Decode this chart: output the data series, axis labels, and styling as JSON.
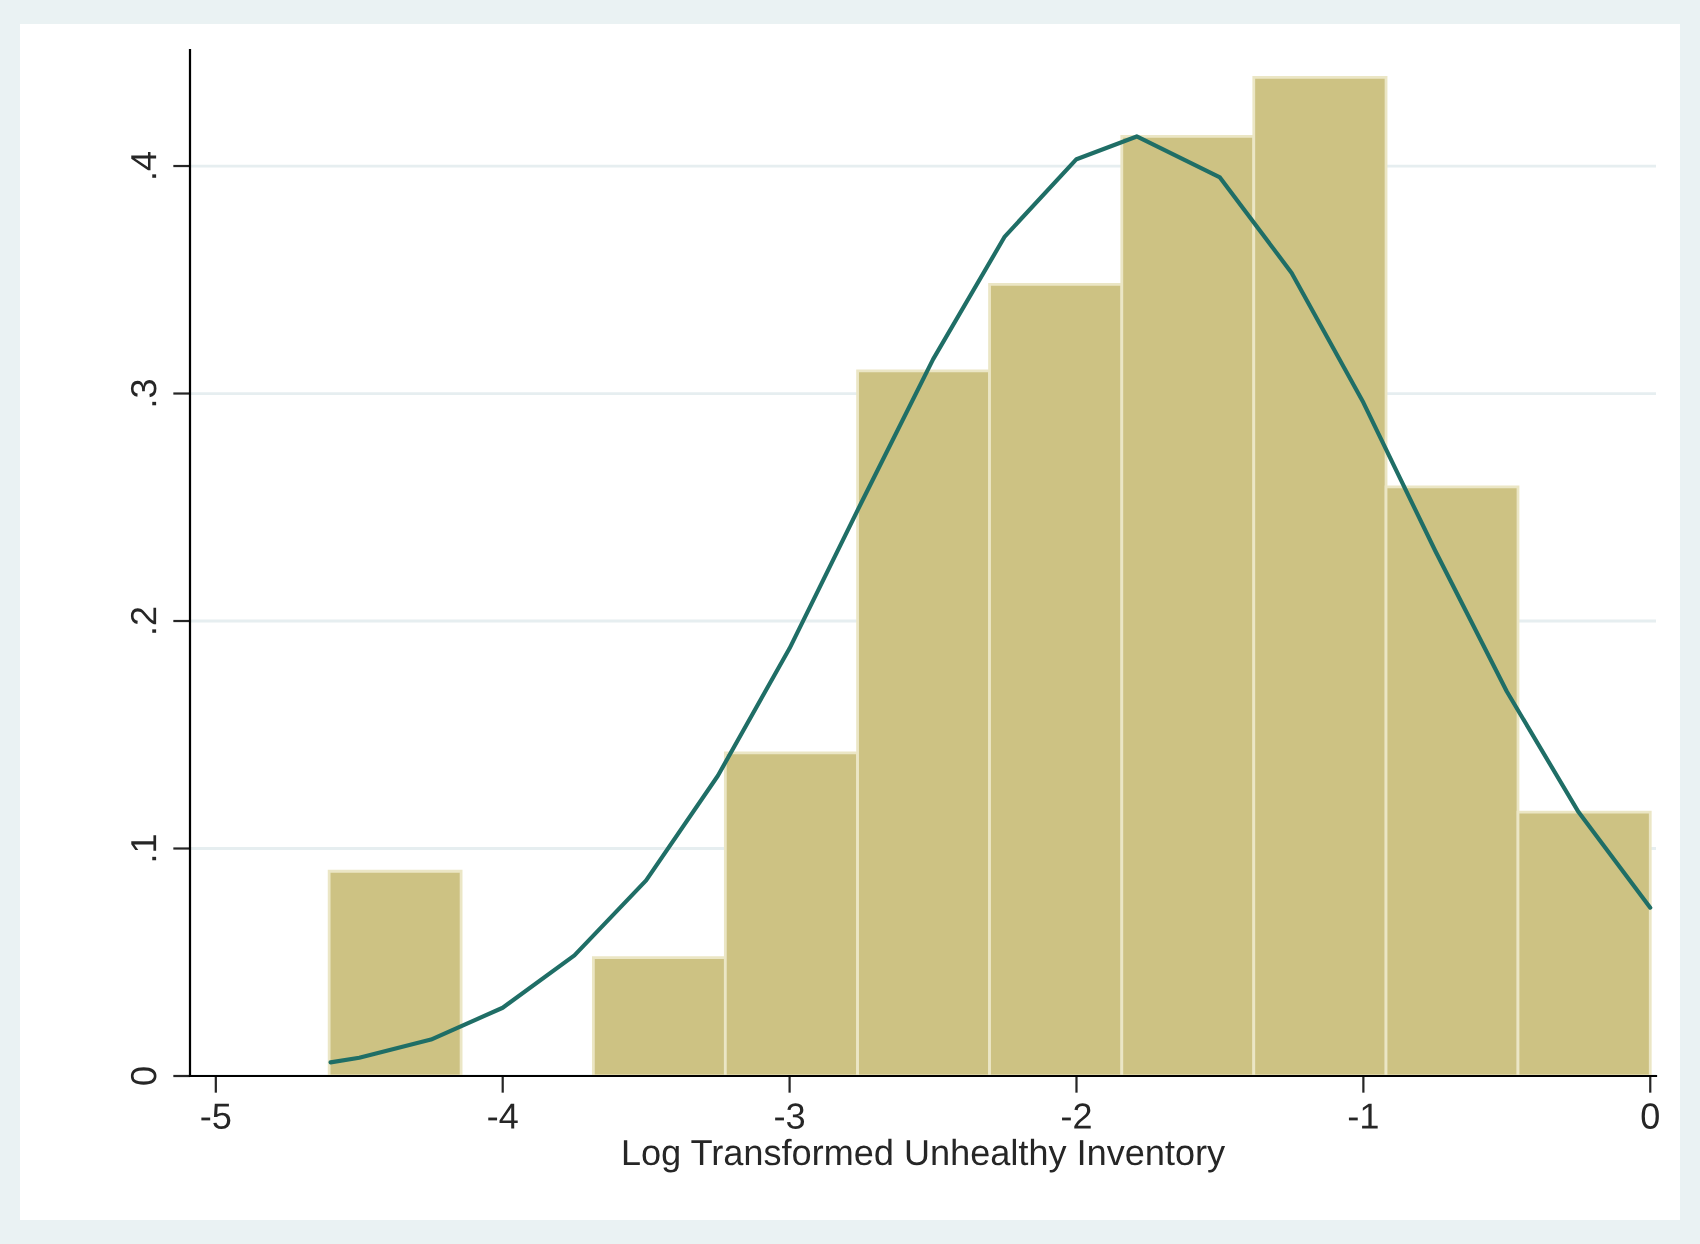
{
  "chart_data": {
    "type": "histogram",
    "xlabel": "Log Transformed Unhealthy Inventory",
    "xlim": [
      -5.09,
      0.02
    ],
    "ylim": [
      0,
      0.451
    ],
    "xticks": [
      -5,
      -4,
      -3,
      -2,
      -1,
      0
    ],
    "yticks": [
      0,
      {
        "value": 0.1,
        "label": ".1"
      },
      {
        "value": 0.2,
        "label": ".2"
      },
      {
        "value": 0.3,
        "label": ".3"
      },
      {
        "value": 0.4,
        "label": ".4"
      }
    ],
    "grid": "y",
    "legend": false,
    "series": [
      {
        "color": "#cdc283",
        "bins": [
          -4.605,
          -4.145,
          -3.684,
          -3.224,
          -2.763,
          -2.303,
          -1.842,
          -1.382,
          -0.921,
          -0.461,
          0
        ],
        "values": [
          0.09,
          0,
          0.052,
          0.142,
          0.31,
          0.348,
          0.413,
          0.439,
          0.259,
          0.116
        ]
      },
      {
        "type": "line",
        "color": "#1f6e66",
        "x": [
          -4.6,
          -4.5,
          -4.25,
          -4,
          -3.75,
          -3.5,
          -3.25,
          -3,
          -2.75,
          -2.5,
          -2.25,
          -2,
          -1.79,
          -1.5,
          -1.25,
          -1,
          -0.75,
          -0.5,
          -0.25,
          0
        ],
        "values": [
          0.006,
          0.008,
          0.016,
          0.03,
          0.053,
          0.086,
          0.132,
          0.188,
          0.252,
          0.315,
          0.369,
          0.403,
          0.413,
          0.395,
          0.353,
          0.296,
          0.231,
          0.169,
          0.116,
          0.074
        ]
      }
    ]
  }
}
